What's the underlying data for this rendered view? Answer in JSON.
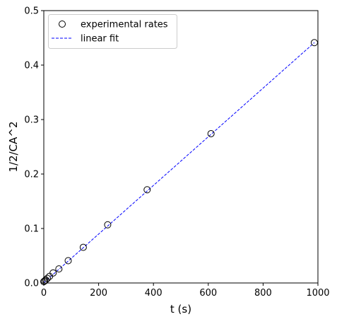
{
  "chart_data": {
    "type": "scatter",
    "title": "",
    "xlabel": "t (s)",
    "ylabel": "1/2/CA^2",
    "xlim": [
      0,
      1000
    ],
    "ylim": [
      0,
      0.5
    ],
    "xticks": [
      0,
      200,
      400,
      600,
      800,
      1000
    ],
    "xtick_labels": [
      "0",
      "200",
      "400",
      "600",
      "800",
      "1000"
    ],
    "yticks": [
      0.0,
      0.1,
      0.2,
      0.3,
      0.4,
      0.5
    ],
    "ytick_labels": [
      "0.0",
      "0.1",
      "0.2",
      "0.3",
      "0.4",
      "0.5"
    ],
    "grid": false,
    "legend_position": "top-left",
    "series": [
      {
        "name": "experimental rates",
        "kind": "scatter",
        "marker": "open-circle",
        "color": "#000000",
        "x": [
          0,
          3,
          7,
          13,
          21,
          34,
          55,
          89,
          144,
          233,
          377,
          610,
          987
        ],
        "y": [
          0.0025,
          0.0037,
          0.0056,
          0.0084,
          0.0122,
          0.0184,
          0.0258,
          0.0409,
          0.0655,
          0.1068,
          0.1711,
          0.2741,
          0.4412
        ]
      },
      {
        "name": "linear fit",
        "kind": "line",
        "style": "dashed",
        "color": "#0000ff",
        "x": [
          0,
          987
        ],
        "y": [
          0.0005,
          0.4412
        ]
      }
    ]
  }
}
